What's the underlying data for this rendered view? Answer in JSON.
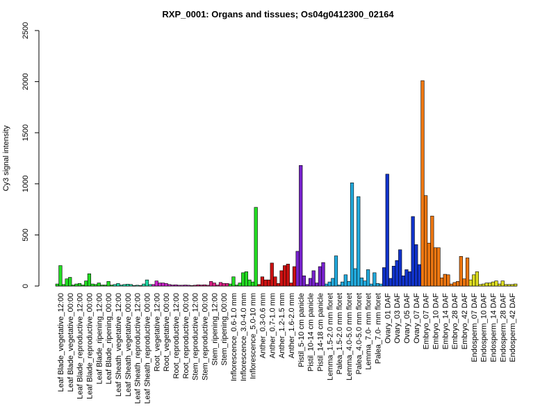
{
  "chart_data": {
    "type": "bar",
    "title": "RXP_0001: Organs and tissues; Os04g0412300_02164",
    "xlabel": "",
    "ylabel": "Cy3 signal intensity",
    "ylim": [
      0,
      2500
    ],
    "yticks": [
      0,
      500,
      1000,
      1500,
      2000,
      2500
    ],
    "grid": false,
    "legend": "none",
    "groups": [
      {
        "label": "Leaf Blade_vegetative_12:00",
        "color": "#22dd22",
        "values": [
          20,
          200,
          15
        ]
      },
      {
        "label": "Leaf Blade_vegetative_00:00",
        "color": "#22dd22",
        "values": [
          70,
          85,
          10
        ]
      },
      {
        "label": "Leaf Blade_reproductive_12:00",
        "color": "#22dd22",
        "values": [
          20,
          25,
          10
        ]
      },
      {
        "label": "Leaf Blade_reproductive_00:00",
        "color": "#22dd22",
        "values": [
          50,
          120,
          20
        ]
      },
      {
        "label": "Leaf Blade_ripening_12:00",
        "color": "#22dd22",
        "values": [
          15,
          30,
          10
        ]
      },
      {
        "label": "Leaf Blade_ripening_00:00",
        "color": "#22dd22",
        "values": [
          10,
          45,
          10
        ]
      },
      {
        "label": "Leaf Sheath_vegetative_12:00",
        "color": "#22ddaa",
        "values": [
          15,
          25,
          10
        ]
      },
      {
        "label": "Leaf Sheath_vegetative_00:00",
        "color": "#22ddaa",
        "values": [
          15,
          18,
          15
        ]
      },
      {
        "label": "Leaf Sheath_reproductive_12:00",
        "color": "#22ddaa",
        "values": [
          5,
          8,
          5
        ]
      },
      {
        "label": "Leaf Sheath_reproductive_00:00",
        "color": "#22ddaa",
        "values": [
          20,
          60,
          15
        ]
      },
      {
        "label": "Root_vegetative_12:00",
        "color": "#cc22cc",
        "values": [
          15,
          50,
          30
        ]
      },
      {
        "label": "Root_vegetative_00:00",
        "color": "#cc22cc",
        "values": [
          30,
          25,
          15
        ]
      },
      {
        "label": "Root_reproductive_12:00",
        "color": "#cc22cc",
        "values": [
          10,
          12,
          8
        ]
      },
      {
        "label": "Root_reproductive_00:00",
        "color": "#cc22cc",
        "values": [
          8,
          10,
          8
        ]
      },
      {
        "label": "Stem_reproductive_12:00",
        "color": "#dd2288",
        "values": [
          5,
          8,
          12
        ]
      },
      {
        "label": "Stem_reproductive_00:00",
        "color": "#dd2288",
        "values": [
          10,
          12,
          8
        ]
      },
      {
        "label": "Stem_ripening_12:00",
        "color": "#dd2288",
        "values": [
          45,
          30,
          10
        ]
      },
      {
        "label": "Stem_ripening_00:00",
        "color": "#dd2288",
        "values": [
          35,
          25,
          25
        ]
      },
      {
        "label": "Inflorescence_0.6-1.0 mm",
        "color": "#22dd22",
        "values": [
          20,
          90,
          10
        ]
      },
      {
        "label": "Inflorescence_3.0-4.0 mm",
        "color": "#22dd22",
        "values": [
          30,
          130,
          140
        ]
      },
      {
        "label": "Inflorescence_5.0-10 mm",
        "color": "#22dd22",
        "values": [
          60,
          40,
          770
        ]
      },
      {
        "label": "Anther_0.3-0.6 mm",
        "color": "#cc1111",
        "values": [
          15,
          90,
          60
        ]
      },
      {
        "label": "Anther_0.7-1.0 mm",
        "color": "#cc1111",
        "values": [
          60,
          225,
          90
        ]
      },
      {
        "label": "Anther_1.2-1.5 mm",
        "color": "#cc1111",
        "values": [
          25,
          150,
          200
        ]
      },
      {
        "label": "Anther_1.6-2.0 mm",
        "color": "#cc1111",
        "values": [
          215,
          30,
          190
        ]
      },
      {
        "label": "Pistil_5-10 cm panicle",
        "color": "#7722cc",
        "values": [
          340,
          1180,
          100
        ]
      },
      {
        "label": "Pistil_10-14 cm panicle",
        "color": "#7722cc",
        "values": [
          15,
          75,
          150
        ]
      },
      {
        "label": "Pistil_14-18 cm panicle",
        "color": "#7722cc",
        "values": [
          30,
          190,
          230
        ]
      },
      {
        "label": "Lemma_1.5-2.0 mm floret",
        "color": "#22aadd",
        "values": [
          20,
          40,
          75
        ]
      },
      {
        "label": "Palea_1.5-2.0 mm floret",
        "color": "#22aadd",
        "values": [
          295,
          10,
          40
        ]
      },
      {
        "label": "Lemma_4.0-5.0 mm floret",
        "color": "#22aadd",
        "values": [
          110,
          45,
          1010
        ]
      },
      {
        "label": "Palea_4.0-5.0 mm floret",
        "color": "#22aadd",
        "values": [
          170,
          875,
          80
        ]
      },
      {
        "label": "Lemma_7.0- mm floret",
        "color": "#22aadd",
        "values": [
          50,
          160,
          20
        ]
      },
      {
        "label": "Palea_7.0- mm floret",
        "color": "#22aadd",
        "values": [
          130,
          25,
          20
        ]
      },
      {
        "label": "Ovary_01 DAF",
        "color": "#1133cc",
        "values": [
          180,
          1095,
          75
        ]
      },
      {
        "label": "Ovary_03 DAF",
        "color": "#1133cc",
        "values": [
          195,
          250,
          355
        ]
      },
      {
        "label": "Ovary_05 DAF",
        "color": "#1133cc",
        "values": [
          100,
          160,
          140
        ]
      },
      {
        "label": "Ovary_07 DAF",
        "color": "#1133cc",
        "values": [
          680,
          405,
          210
        ]
      },
      {
        "label": "Embryo_07 DAF",
        "color": "#ee7711",
        "values": [
          2010,
          885,
          420
        ]
      },
      {
        "label": "Embryo_10 DAF",
        "color": "#ee7711",
        "values": [
          685,
          375,
          375
        ]
      },
      {
        "label": "Embryo_14 DAF",
        "color": "#ee7711",
        "values": [
          80,
          115,
          110
        ]
      },
      {
        "label": "Embryo_28 DAF",
        "color": "#ee7711",
        "values": [
          20,
          35,
          45
        ]
      },
      {
        "label": "Embryo_42 DAF",
        "color": "#ee7711",
        "values": [
          290,
          70,
          275
        ]
      },
      {
        "label": "Endosperm_07 DAF",
        "color": "#dddd22",
        "values": [
          60,
          110,
          140
        ]
      },
      {
        "label": "Endosperm_10 DAF",
        "color": "#dddd22",
        "values": [
          15,
          20,
          30
        ]
      },
      {
        "label": "Endosperm_14 DAF",
        "color": "#dddd22",
        "values": [
          30,
          40,
          50
        ]
      },
      {
        "label": "Endosperm_28 DAF",
        "color": "#dddd22",
        "values": [
          20,
          50,
          15
        ]
      },
      {
        "label": "Endosperm_42 DAF",
        "color": "#dddd22",
        "values": [
          15,
          15,
          20
        ]
      }
    ]
  }
}
